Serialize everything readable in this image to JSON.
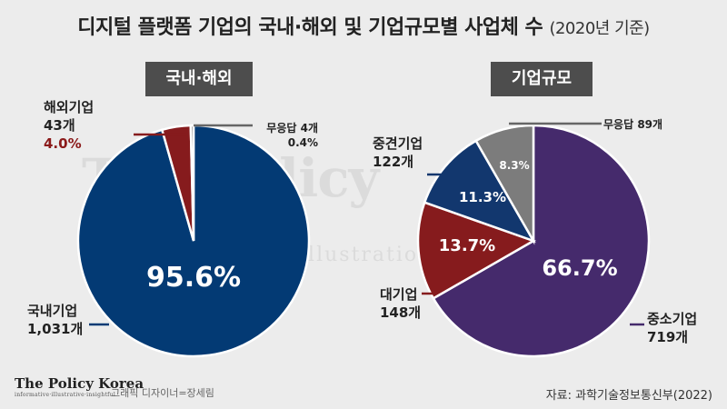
{
  "title": {
    "main": "디지털 플랫폼 기업의 국내·해외 및 기업규모별 사업체 수",
    "sub": "(2020년 기준)"
  },
  "watermark": {
    "text": "The Policy",
    "small": "illustratio"
  },
  "colors": {
    "navy": "#033a74",
    "dark_red": "#861b1d",
    "gray": "#7c7c7c",
    "purple": "#452a6c",
    "navy_blue": "#12376e",
    "red_accent": "#8b1a1a"
  },
  "chart_data": [
    {
      "type": "pie",
      "title": "국내·해외",
      "slices": [
        {
          "key": "domestic",
          "name": "국내기업",
          "count": "1,031개",
          "value": 95.6,
          "label": "95.6%",
          "color": "#033a74"
        },
        {
          "key": "foreign",
          "name": "해외기업",
          "count": "43개",
          "value": 4.0,
          "label": "4.0%",
          "color": "#861b1d"
        },
        {
          "key": "noresp",
          "name": "무응답",
          "count": "4개",
          "value": 0.4,
          "label": "0.4%",
          "color": "#7c7c7c"
        }
      ]
    },
    {
      "type": "pie",
      "title": "기업규모",
      "slices": [
        {
          "key": "sme",
          "name": "중소기업",
          "count": "719개",
          "value": 66.7,
          "label": "66.7%",
          "color": "#452a6c"
        },
        {
          "key": "large",
          "name": "대기업",
          "count": "148개",
          "value": 13.7,
          "label": "13.7%",
          "color": "#861b1d"
        },
        {
          "key": "midsize",
          "name": "중견기업",
          "count": "122개",
          "value": 11.3,
          "label": "11.3%",
          "color": "#12376e"
        },
        {
          "key": "noresp",
          "name": "무응답",
          "count": "89개",
          "value": 8.3,
          "label": "8.3%",
          "color": "#7c7c7c"
        }
      ]
    }
  ],
  "footer": {
    "logo": "The Policy Korea",
    "logo_sub": "informative·illustrative·insightful",
    "designer": "그래픽 디자이너=장세림",
    "source": "자료: 과학기술정보통신부(2022)"
  }
}
